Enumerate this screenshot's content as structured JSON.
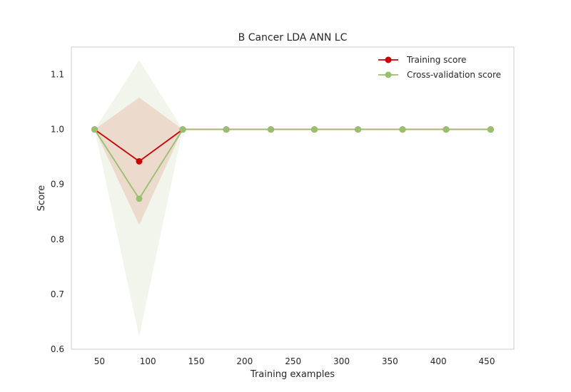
{
  "chart_data": {
    "type": "line",
    "title": "B Cancer LDA ANN LC",
    "xlabel": "Training examples",
    "ylabel": "Score",
    "xlim": [
      21,
      478
    ],
    "ylim": [
      0.6,
      1.15
    ],
    "xticks": [
      50,
      100,
      150,
      200,
      250,
      300,
      350,
      400,
      450
    ],
    "yticks": [
      0.6,
      0.7,
      0.8,
      0.9,
      1.0,
      1.1
    ],
    "grid": false,
    "legend_position": "upper right",
    "x": [
      45,
      91,
      136,
      181,
      227,
      272,
      317,
      363,
      408,
      454
    ],
    "series": [
      {
        "name": "Training score",
        "color": "#cc0000",
        "marker": "circle",
        "values": [
          1.0,
          0.942,
          1.0,
          1.0,
          1.0,
          1.0,
          1.0,
          1.0,
          1.0,
          1.0
        ],
        "band_upper": [
          1.0,
          1.058,
          1.0,
          1.0,
          1.0,
          1.0,
          1.0,
          1.0,
          1.0,
          1.0
        ],
        "band_lower": [
          1.0,
          0.826,
          1.0,
          1.0,
          1.0,
          1.0,
          1.0,
          1.0,
          1.0,
          1.0
        ],
        "band_color": "#e8c9b8"
      },
      {
        "name": "Cross-validation score",
        "color": "#97bf70",
        "marker": "circle",
        "values": [
          1.0,
          0.874,
          1.0,
          1.0,
          1.0,
          1.0,
          1.0,
          1.0,
          1.0,
          1.0
        ],
        "band_upper": [
          1.0,
          1.126,
          1.0,
          1.0,
          1.0,
          1.0,
          1.0,
          1.0,
          1.0,
          1.0
        ],
        "band_lower": [
          1.0,
          0.623,
          1.0,
          1.0,
          1.0,
          1.0,
          1.0,
          1.0,
          1.0,
          1.0
        ],
        "band_color": "#e9efdf"
      }
    ]
  }
}
